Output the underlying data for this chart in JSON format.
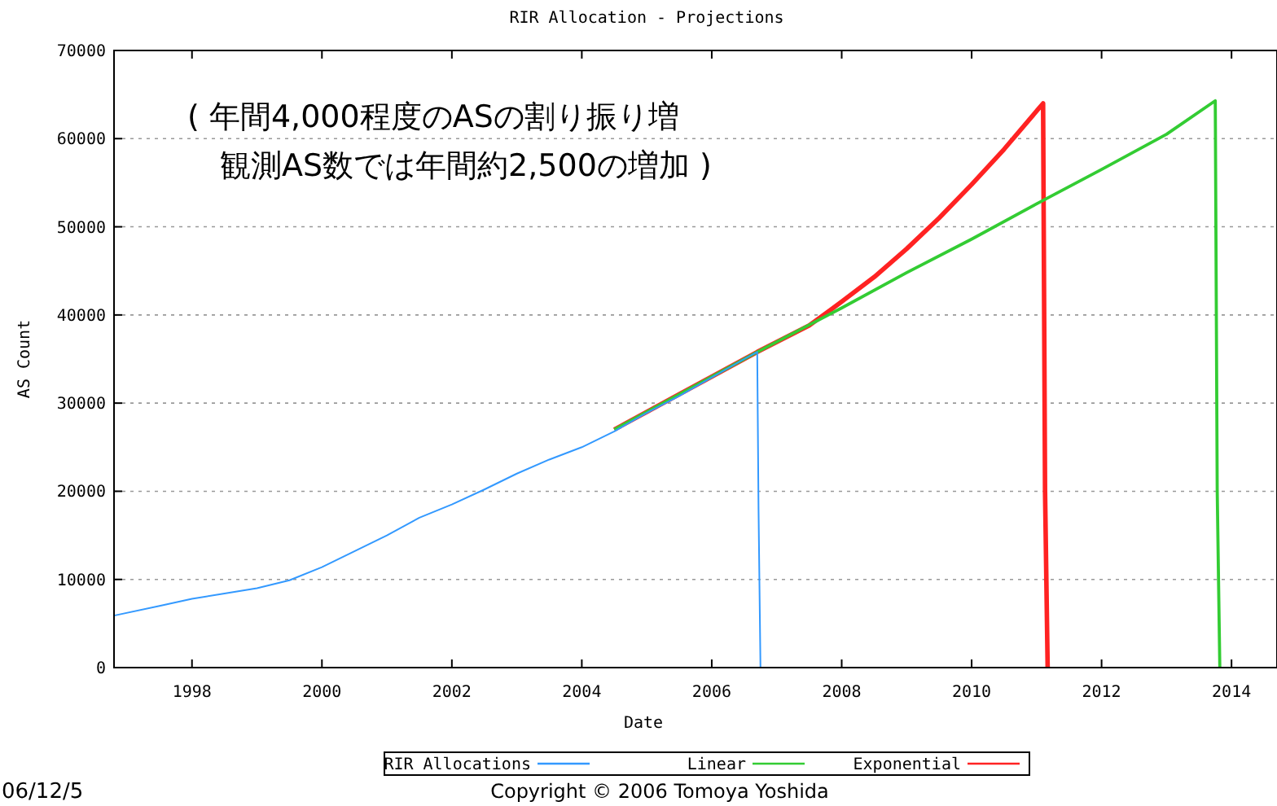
{
  "chart_data": {
    "type": "line",
    "title": "RIR Allocation - Projections",
    "xlabel": "Date",
    "ylabel": "AS Count",
    "xlim": [
      1996.8,
      2014.7
    ],
    "xticks": [
      1998,
      2000,
      2002,
      2004,
      2006,
      2008,
      2010,
      2012,
      2014
    ],
    "ylim": [
      0,
      70000
    ],
    "yticks": [
      0,
      10000,
      20000,
      30000,
      40000,
      50000,
      60000,
      70000
    ],
    "grid": "y",
    "legend": "bottom",
    "marker": "none",
    "line_style": "solid",
    "series": [
      {
        "name": "RIR Allocations",
        "color": "#3399ff",
        "x": [
          1996.8,
          1997.5,
          1998,
          1998.5,
          1999,
          1999.5,
          2000,
          2000.5,
          2001,
          2001.5,
          2002,
          2002.5,
          2003,
          2003.5,
          2004,
          2004.5,
          2005,
          2005.5,
          2006,
          2006.5,
          2006.7,
          2006.72,
          2006.75
        ],
        "values": [
          5900,
          7000,
          7800,
          8400,
          9000,
          9900,
          11400,
          13200,
          15000,
          17000,
          18500,
          20200,
          22000,
          23600,
          25000,
          26800,
          28900,
          30800,
          32900,
          35000,
          35800,
          18000,
          0
        ]
      },
      {
        "name": "Linear",
        "color": "#33cc33",
        "x": [
          2004.5,
          2005.5,
          2006.7,
          2008,
          2009,
          2010,
          2011,
          2012,
          2013,
          2013.75,
          2013.78,
          2013.82
        ],
        "values": [
          27000,
          31000,
          35800,
          40800,
          44800,
          48600,
          52600,
          56500,
          60500,
          64300,
          20000,
          0
        ]
      },
      {
        "name": "Exponential",
        "color": "#ff2222",
        "x": [
          2004.5,
          2005.5,
          2006.7,
          2007.5,
          2008,
          2008.5,
          2009,
          2009.5,
          2010,
          2010.5,
          2011.1,
          2011.13,
          2011.17
        ],
        "values": [
          27000,
          31000,
          35800,
          38800,
          41500,
          44300,
          47500,
          51000,
          54800,
          58800,
          64000,
          20000,
          0
        ]
      }
    ],
    "annotations": [
      "( 年間4,000程度のASの割り振り増",
      "観測AS数では年間約2,500の増加 )",
      "06/12/5",
      "Copyright © 2006 Tomoya Yoshida"
    ]
  }
}
